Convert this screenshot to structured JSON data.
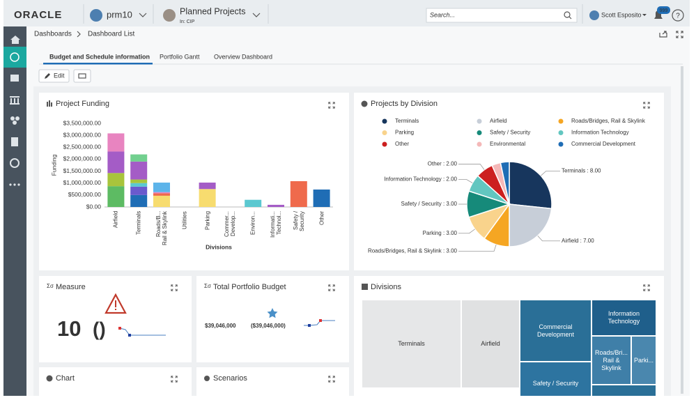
{
  "header": {
    "brand": "ORACLE",
    "workspace": "prm10",
    "project": "Planned Projects",
    "project_scope": "In: CIP",
    "search_placeholder": "Search...",
    "user": "Scott Esposito",
    "notification_count": "999"
  },
  "breadcrumb": [
    "Dashboards",
    "Dashboard List"
  ],
  "tabs": [
    "Budget and Schedule information",
    "Portfolio Gantt",
    "Overview Dashboard"
  ],
  "toolbar": {
    "edit": "Edit"
  },
  "chart_data": [
    {
      "type": "bar",
      "stacked": true,
      "title": "Project Funding",
      "x_label": "Divisions",
      "y_label": "Funding",
      "categories": [
        "Airfield",
        "Terminals",
        "Roads/B... Rail & Skylink",
        "Utilities",
        "Parking",
        "Commer... Develop...",
        "Environ...",
        "Informati... Technol...",
        "Safety / Security",
        "Other"
      ],
      "series": [
        {
          "color": "#5dbb63",
          "values": [
            870000,
            null,
            null,
            null,
            null,
            null,
            null,
            null,
            null,
            null
          ]
        },
        {
          "color": "#1f6db5",
          "values": [
            null,
            500000,
            null,
            null,
            null,
            null,
            null,
            null,
            null,
            730000
          ]
        },
        {
          "color": "#f7dc6f",
          "values": [
            null,
            null,
            470000,
            null,
            750000,
            null,
            null,
            null,
            null,
            null
          ]
        },
        {
          "color": "#ef6a4c",
          "values": [
            null,
            null,
            100000,
            null,
            null,
            null,
            null,
            null,
            1080000,
            null
          ]
        },
        {
          "color": "#6a5acd",
          "values": [
            null,
            350000,
            null,
            null,
            null,
            null,
            null,
            null,
            null,
            null
          ]
        },
        {
          "color": "#5bc8d0",
          "values": [
            null,
            150000,
            null,
            null,
            null,
            null,
            300000,
            null,
            null,
            null
          ]
        },
        {
          "color": "#a8c43c",
          "values": [
            550000,
            150000,
            null,
            null,
            null,
            null,
            null,
            null,
            null,
            null
          ]
        },
        {
          "color": "#a45cc6",
          "values": [
            900000,
            750000,
            null,
            null,
            270000,
            null,
            null,
            90000,
            null,
            null
          ]
        },
        {
          "color": "#72d08f",
          "values": [
            null,
            300000,
            null,
            null,
            null,
            null,
            null,
            null,
            null,
            null
          ]
        },
        {
          "color": "#e884c0",
          "values": [
            760000,
            null,
            50000,
            null,
            null,
            null,
            null,
            null,
            null,
            null
          ]
        },
        {
          "color": "#5db4ea",
          "values": [
            null,
            null,
            400000,
            null,
            null,
            null,
            null,
            null,
            null,
            null
          ]
        }
      ],
      "ylim": [
        0,
        3500000
      ],
      "yticks": [
        {
          "value": 0,
          "label": "$0.00"
        },
        {
          "value": 500000,
          "label": "$500,000.00"
        },
        {
          "value": 1000000,
          "label": "$1,000,000.00"
        },
        {
          "value": 1500000,
          "label": "$1,500,000.00"
        },
        {
          "value": 2000000,
          "label": "$2,000,000.00"
        },
        {
          "value": 2500000,
          "label": "$2,500,000.00"
        },
        {
          "value": 3000000,
          "label": "$3,000,000.00"
        },
        {
          "value": 3500000,
          "label": "$3,500,000.00"
        }
      ],
      "grid": false
    },
    {
      "type": "pie",
      "title": "Projects by Division",
      "categories": [
        "Terminals",
        "Airfield",
        "Roads/Bridges, Rail & Skylink",
        "Parking",
        "Safety / Security",
        "Information Technology",
        "Other",
        "Environmental",
        "Commercial Development"
      ],
      "values": [
        8,
        7,
        3,
        3,
        3,
        2,
        2,
        1,
        1
      ],
      "value_labels": [
        "Terminals : 8.00",
        "Airfield : 7.00",
        "Roads/Bridges, Rail & Skylink : 3.00",
        "Parking : 3.00",
        "Safety / Security : 3.00",
        "Information Technology : 2.00",
        "Other : 2.00",
        null,
        null
      ],
      "colors": [
        "#17365d",
        "#c7ced8",
        "#f5a623",
        "#f9d38c",
        "#168a7a",
        "#62c6c0",
        "#cc1f1f",
        "#f4b8b8",
        "#1f6db5"
      ],
      "legend": "top"
    }
  ],
  "widgets": {
    "measure": {
      "title": "Measure",
      "value": 10,
      "unit": "()"
    },
    "total_budget": {
      "title": "Total Portfolio Budget",
      "value": "$39,046,000",
      "variance": "($39,046,000)"
    },
    "divisions": {
      "title": "Divisions",
      "tiles": [
        "Terminals",
        "Airfield",
        "Commercial Development",
        "Safety / Security",
        "Information Technology",
        "Roads/Bri... Rail & Skylink",
        "Parki..."
      ]
    },
    "chart": {
      "title": "Chart"
    },
    "scenarios": {
      "title": "Scenarios"
    }
  }
}
